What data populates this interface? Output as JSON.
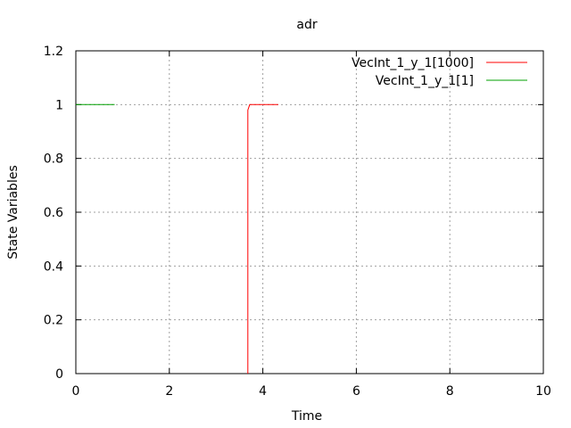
{
  "chart_data": {
    "type": "line",
    "title": "adr",
    "xlabel": "Time",
    "ylabel": "State Variables",
    "xlim": [
      0,
      10
    ],
    "ylim": [
      0,
      1.2
    ],
    "xticks": [
      0,
      2,
      4,
      6,
      8,
      10
    ],
    "yticks": [
      0,
      0.2,
      0.4,
      0.6,
      0.8,
      1,
      1.2
    ],
    "xtick_labels": [
      "0",
      "2",
      "4",
      "6",
      "8",
      "10"
    ],
    "ytick_labels": [
      "0",
      "0.2",
      "0.4",
      "0.6",
      "0.8",
      "1",
      "1.2"
    ],
    "grid": true,
    "legend_position": "top-right",
    "series": [
      {
        "name": "VecInt_1_y_1[1000]",
        "color": "#ff0000",
        "x": [
          3.68,
          3.68,
          3.72,
          4.33
        ],
        "y": [
          0,
          0.98,
          1,
          1
        ]
      },
      {
        "name": "VecInt_1_y_1[1]",
        "color": "#00a000",
        "x": [
          0,
          0.83
        ],
        "y": [
          1,
          1
        ]
      }
    ]
  }
}
